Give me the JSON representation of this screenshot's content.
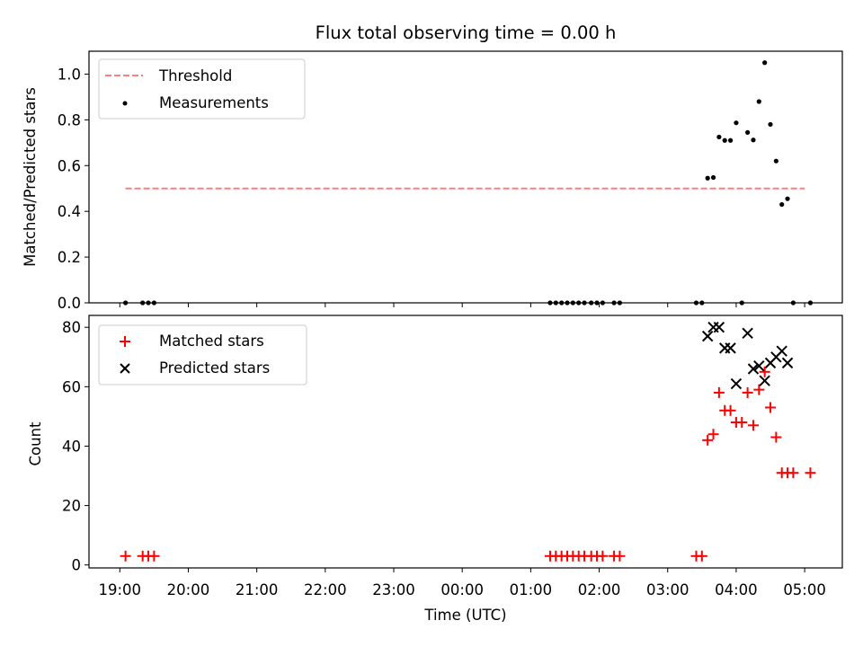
{
  "chart_data": [
    {
      "type": "scatter",
      "title": "Flux total observing time = 0.00 h",
      "xlabel": "",
      "ylabel": "Matched/Predicted stars",
      "xlim": [
        "18:33",
        "05:33"
      ],
      "ylim": [
        0,
        1.1
      ],
      "yticks": [
        "0.0",
        "0.2",
        "0.4",
        "0.6",
        "0.8",
        "1.0"
      ],
      "legend_position": "top-left",
      "grid": false,
      "threshold": {
        "name": "Threshold",
        "value": 0.5,
        "x_range": [
          "19:05",
          "05:00"
        ],
        "color": "#ff7f7f",
        "style": "dashed"
      },
      "series": [
        {
          "name": "Measurements",
          "marker": "dot",
          "color": "#000000",
          "points": [
            [
              "19:05",
              0
            ],
            [
              "19:20",
              0
            ],
            [
              "19:25",
              0
            ],
            [
              "19:30",
              0
            ],
            [
              "01:17",
              0
            ],
            [
              "01:22",
              0
            ],
            [
              "01:27",
              0
            ],
            [
              "01:32",
              0
            ],
            [
              "01:37",
              0
            ],
            [
              "01:42",
              0
            ],
            [
              "01:47",
              0
            ],
            [
              "01:53",
              0
            ],
            [
              "01:58",
              0
            ],
            [
              "02:03",
              0
            ],
            [
              "02:13",
              0
            ],
            [
              "02:18",
              0
            ],
            [
              "03:25",
              0
            ],
            [
              "03:30",
              0
            ],
            [
              "03:35",
              0.545
            ],
            [
              "03:40",
              0.548
            ],
            [
              "03:45",
              0.725
            ],
            [
              "03:50",
              0.71
            ],
            [
              "03:55",
              0.71
            ],
            [
              "04:00",
              0.787
            ],
            [
              "04:05",
              0
            ],
            [
              "04:10",
              0.745
            ],
            [
              "04:15",
              0.712
            ],
            [
              "04:20",
              0.88
            ],
            [
              "04:25",
              1.05
            ],
            [
              "04:30",
              0.78
            ],
            [
              "04:35",
              0.62
            ],
            [
              "04:40",
              0.43
            ],
            [
              "04:45",
              0.455
            ],
            [
              "04:50",
              0
            ],
            [
              "05:05",
              0
            ]
          ]
        }
      ]
    },
    {
      "type": "scatter",
      "title": "",
      "xlabel": "Time (UTC)",
      "ylabel": "Count",
      "xlim": [
        "18:33",
        "05:33"
      ],
      "ylim": [
        -1,
        84
      ],
      "yticks": [
        "0",
        "20",
        "40",
        "60",
        "80"
      ],
      "xticks": [
        "19:00",
        "20:00",
        "21:00",
        "22:00",
        "23:00",
        "00:00",
        "01:00",
        "02:00",
        "03:00",
        "04:00",
        "05:00"
      ],
      "legend_position": "top-left",
      "grid": false,
      "series": [
        {
          "name": "Matched stars",
          "marker": "plus",
          "color": "#ff0000",
          "points": [
            [
              "19:05",
              3
            ],
            [
              "19:20",
              3
            ],
            [
              "19:25",
              3
            ],
            [
              "19:30",
              3
            ],
            [
              "01:17",
              3
            ],
            [
              "01:22",
              3
            ],
            [
              "01:27",
              3
            ],
            [
              "01:32",
              3
            ],
            [
              "01:37",
              3
            ],
            [
              "01:42",
              3
            ],
            [
              "01:47",
              3
            ],
            [
              "01:53",
              3
            ],
            [
              "01:58",
              3
            ],
            [
              "02:03",
              3
            ],
            [
              "02:13",
              3
            ],
            [
              "02:18",
              3
            ],
            [
              "03:25",
              3
            ],
            [
              "03:30",
              3
            ],
            [
              "03:35",
              42
            ],
            [
              "03:40",
              44
            ],
            [
              "03:45",
              58
            ],
            [
              "03:50",
              52
            ],
            [
              "03:55",
              52
            ],
            [
              "04:00",
              48
            ],
            [
              "04:05",
              48
            ],
            [
              "04:10",
              58
            ],
            [
              "04:15",
              47
            ],
            [
              "04:20",
              59
            ],
            [
              "04:25",
              65
            ],
            [
              "04:30",
              53
            ],
            [
              "04:35",
              43
            ],
            [
              "04:40",
              31
            ],
            [
              "04:45",
              31
            ],
            [
              "04:50",
              31
            ],
            [
              "05:05",
              31
            ]
          ]
        },
        {
          "name": "Predicted stars",
          "marker": "x",
          "color": "#000000",
          "points": [
            [
              "03:35",
              77
            ],
            [
              "03:40",
              80
            ],
            [
              "03:45",
              80
            ],
            [
              "03:50",
              73
            ],
            [
              "03:55",
              73
            ],
            [
              "04:00",
              61
            ],
            [
              "04:10",
              78
            ],
            [
              "04:15",
              66
            ],
            [
              "04:20",
              67
            ],
            [
              "04:25",
              62
            ],
            [
              "04:30",
              68
            ],
            [
              "04:35",
              70
            ],
            [
              "04:40",
              72
            ],
            [
              "04:45",
              68
            ]
          ]
        }
      ]
    }
  ]
}
